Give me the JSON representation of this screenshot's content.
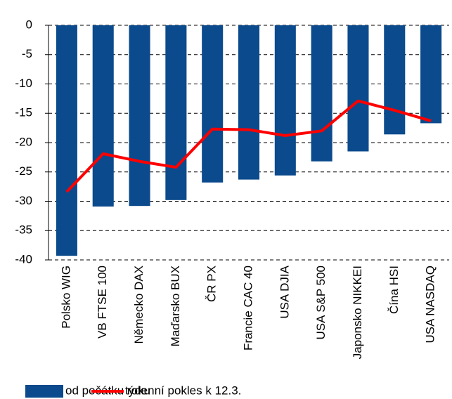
{
  "chart_data": {
    "type": "bar",
    "categories": [
      "Polsko WIG",
      "VB  FTSE 100",
      "Německo DAX",
      "Maďarsko BUX",
      "ČR  PX",
      "Francie CAC 40",
      "USA DJIA",
      "USA S&P 500",
      "Japonsko NIKKEI",
      "Čína HSI",
      "USA NASDAQ"
    ],
    "series": [
      {
        "name": "od počátku roku",
        "type": "bar",
        "color": "#0b4a8c",
        "values": [
          -39.3,
          -30.9,
          -30.8,
          -29.8,
          -26.8,
          -26.3,
          -25.6,
          -23.2,
          -21.5,
          -18.6,
          -16.7
        ]
      },
      {
        "name": "týdenní pokles k 12.3.",
        "type": "line",
        "color": "#ff0000",
        "values": [
          -28.4,
          -21.9,
          -23.2,
          -24.2,
          -17.7,
          -17.8,
          -18.8,
          -18.0,
          -12.9,
          -14.5,
          -16.3
        ]
      }
    ],
    "ylim": [
      -40,
      0
    ],
    "yticks": [
      0,
      -5,
      -10,
      -15,
      -20,
      -25,
      -30,
      -35,
      -40
    ],
    "grid": true,
    "legend": "bottom"
  }
}
